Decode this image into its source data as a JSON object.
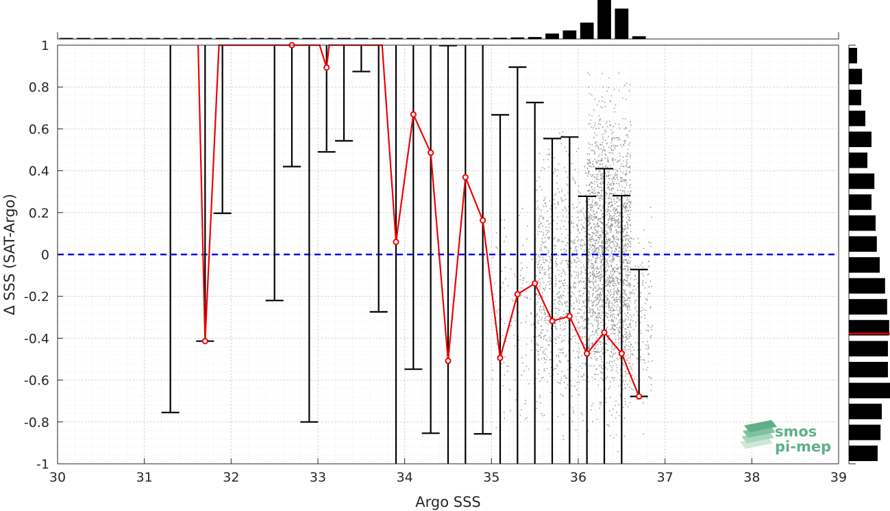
{
  "chart_data": {
    "type": "scatter",
    "xlabel": "Argo SSS",
    "ylabel": "Δ SSS (SAT-Argo)",
    "xlim": [
      30,
      39
    ],
    "ylim": [
      -1,
      1
    ],
    "xticks": [
      "30",
      "31",
      "32",
      "33",
      "34",
      "35",
      "36",
      "37",
      "38",
      "39"
    ],
    "yticks": [
      "1",
      "0.8",
      "0.6",
      "0.4",
      "0.2",
      "0",
      "-0.2",
      "-0.4",
      "-0.6",
      "-0.8",
      "-1"
    ],
    "grid": true,
    "reference_line": {
      "y": 0,
      "color": "#0000ee",
      "style": "dashed"
    },
    "median_line_color": "#ee0000",
    "errorbar_color": "#000000",
    "scatter_color": "#8c8c8c",
    "bins": [
      {
        "x": 31.3,
        "median": null,
        "low": -0.755,
        "high": null
      },
      {
        "x": 31.7,
        "median": -0.414,
        "low": -0.414,
        "high": null
      },
      {
        "x": 31.9,
        "median": null,
        "low": 0.197,
        "high": null
      },
      {
        "x": 32.5,
        "median": null,
        "low": -0.22,
        "high": null
      },
      {
        "x": 32.7,
        "median": 1.0,
        "low": 0.42,
        "high": null
      },
      {
        "x": 32.9,
        "median": null,
        "low": -0.8,
        "high": null
      },
      {
        "x": 33.1,
        "median": 0.893,
        "low": 0.49,
        "high": null
      },
      {
        "x": 33.3,
        "median": null,
        "low": 0.543,
        "high": null
      },
      {
        "x": 33.5,
        "median": null,
        "low": 0.874,
        "high": null
      },
      {
        "x": 33.7,
        "median": null,
        "low": -0.274,
        "high": null
      },
      {
        "x": 33.9,
        "median": 0.06,
        "low": null,
        "high": null
      },
      {
        "x": 34.1,
        "median": 0.669,
        "low": -0.548,
        "high": null
      },
      {
        "x": 34.3,
        "median": 0.486,
        "low": -0.854,
        "high": null
      },
      {
        "x": 34.5,
        "median": -0.508,
        "low": null,
        "high": 0.998
      },
      {
        "x": 34.7,
        "median": 0.369,
        "low": null,
        "high": null
      },
      {
        "x": 34.9,
        "median": 0.163,
        "low": -0.857,
        "high": null
      },
      {
        "x": 35.1,
        "median": -0.494,
        "low": null,
        "high": 0.667
      },
      {
        "x": 35.3,
        "median": -0.19,
        "low": null,
        "high": 0.895
      },
      {
        "x": 35.5,
        "median": -0.138,
        "low": null,
        "high": 0.726
      },
      {
        "x": 35.7,
        "median": -0.318,
        "low": null,
        "high": 0.554
      },
      {
        "x": 35.9,
        "median": -0.295,
        "low": null,
        "high": 0.561
      },
      {
        "x": 36.1,
        "median": -0.473,
        "low": null,
        "high": 0.278
      },
      {
        "x": 36.3,
        "median": -0.373,
        "low": null,
        "high": 0.41
      },
      {
        "x": 36.5,
        "median": -0.473,
        "low": null,
        "high": 0.281
      },
      {
        "x": 36.7,
        "median": -0.678,
        "low": -0.678,
        "high": -0.072
      }
    ],
    "median_series": [
      {
        "x": 31.62,
        "y": 1.0
      },
      {
        "x": 31.7,
        "y": -0.414
      },
      {
        "x": 31.86,
        "y": 1.0
      },
      {
        "x": 33.02,
        "y": 1.0
      },
      {
        "x": 33.1,
        "y": 0.893
      },
      {
        "x": 33.13,
        "y": 1.0
      },
      {
        "x": 33.74,
        "y": 1.0
      },
      {
        "x": 33.9,
        "y": 0.06
      },
      {
        "x": 34.1,
        "y": 0.669
      },
      {
        "x": 34.3,
        "y": 0.486
      },
      {
        "x": 34.5,
        "y": -0.508
      },
      {
        "x": 34.7,
        "y": 0.369
      },
      {
        "x": 34.9,
        "y": 0.163
      },
      {
        "x": 35.1,
        "y": -0.494
      },
      {
        "x": 35.3,
        "y": -0.19
      },
      {
        "x": 35.5,
        "y": -0.138
      },
      {
        "x": 35.7,
        "y": -0.318
      },
      {
        "x": 35.9,
        "y": -0.295
      },
      {
        "x": 36.1,
        "y": -0.473
      },
      {
        "x": 36.3,
        "y": -0.373
      },
      {
        "x": 36.5,
        "y": -0.473
      },
      {
        "x": 36.7,
        "y": -0.678
      }
    ],
    "x_histogram": {
      "bin_centers": [
        30.1,
        30.3,
        30.5,
        30.7,
        30.9,
        31.1,
        31.3,
        31.5,
        31.7,
        31.9,
        32.1,
        32.3,
        32.5,
        32.7,
        32.9,
        33.1,
        33.3,
        33.5,
        33.7,
        33.9,
        34.1,
        34.3,
        34.5,
        34.7,
        34.9,
        35.1,
        35.3,
        35.5,
        35.7,
        35.9,
        36.1,
        36.3,
        36.5,
        36.7
      ],
      "relative_heights": [
        0.01,
        0.0,
        0.0,
        0.01,
        0.0,
        0.0,
        0.01,
        0.0,
        0.01,
        0.01,
        0.0,
        0.01,
        0.01,
        0.01,
        0.01,
        0.01,
        0.01,
        0.01,
        0.01,
        0.01,
        0.01,
        0.01,
        0.01,
        0.02,
        0.02,
        0.03,
        0.04,
        0.05,
        0.14,
        0.22,
        0.42,
        1.0,
        0.78,
        0.07
      ]
    },
    "y_histogram": {
      "bin_centers": [
        0.95,
        0.85,
        0.75,
        0.65,
        0.55,
        0.45,
        0.35,
        0.25,
        0.15,
        0.05,
        -0.05,
        -0.15,
        -0.25,
        -0.35,
        -0.45,
        -0.55,
        -0.65,
        -0.75,
        -0.85,
        -0.95
      ],
      "relative_widths": [
        0.2,
        0.32,
        0.3,
        0.4,
        0.55,
        0.45,
        0.62,
        0.55,
        0.65,
        0.68,
        0.75,
        0.88,
        0.93,
        0.98,
        0.95,
        0.95,
        1.0,
        0.8,
        0.77,
        0.7
      ],
      "median_marker": -0.378
    },
    "scatter_clusters": [
      {
        "x": [
          35.0,
          35.5
        ],
        "y": [
          -1,
          0.4
        ],
        "count": 140
      },
      {
        "x": [
          35.5,
          36.1
        ],
        "y": [
          -1,
          0.7
        ],
        "count": 900
      },
      {
        "x": [
          36.1,
          36.6
        ],
        "y": [
          -1,
          1.0
        ],
        "count": 2200
      },
      {
        "x": [
          36.6,
          36.85
        ],
        "y": [
          -0.9,
          0.3
        ],
        "count": 150
      }
    ]
  },
  "logo": {
    "line1": "smos",
    "line2": "pi-mep"
  }
}
